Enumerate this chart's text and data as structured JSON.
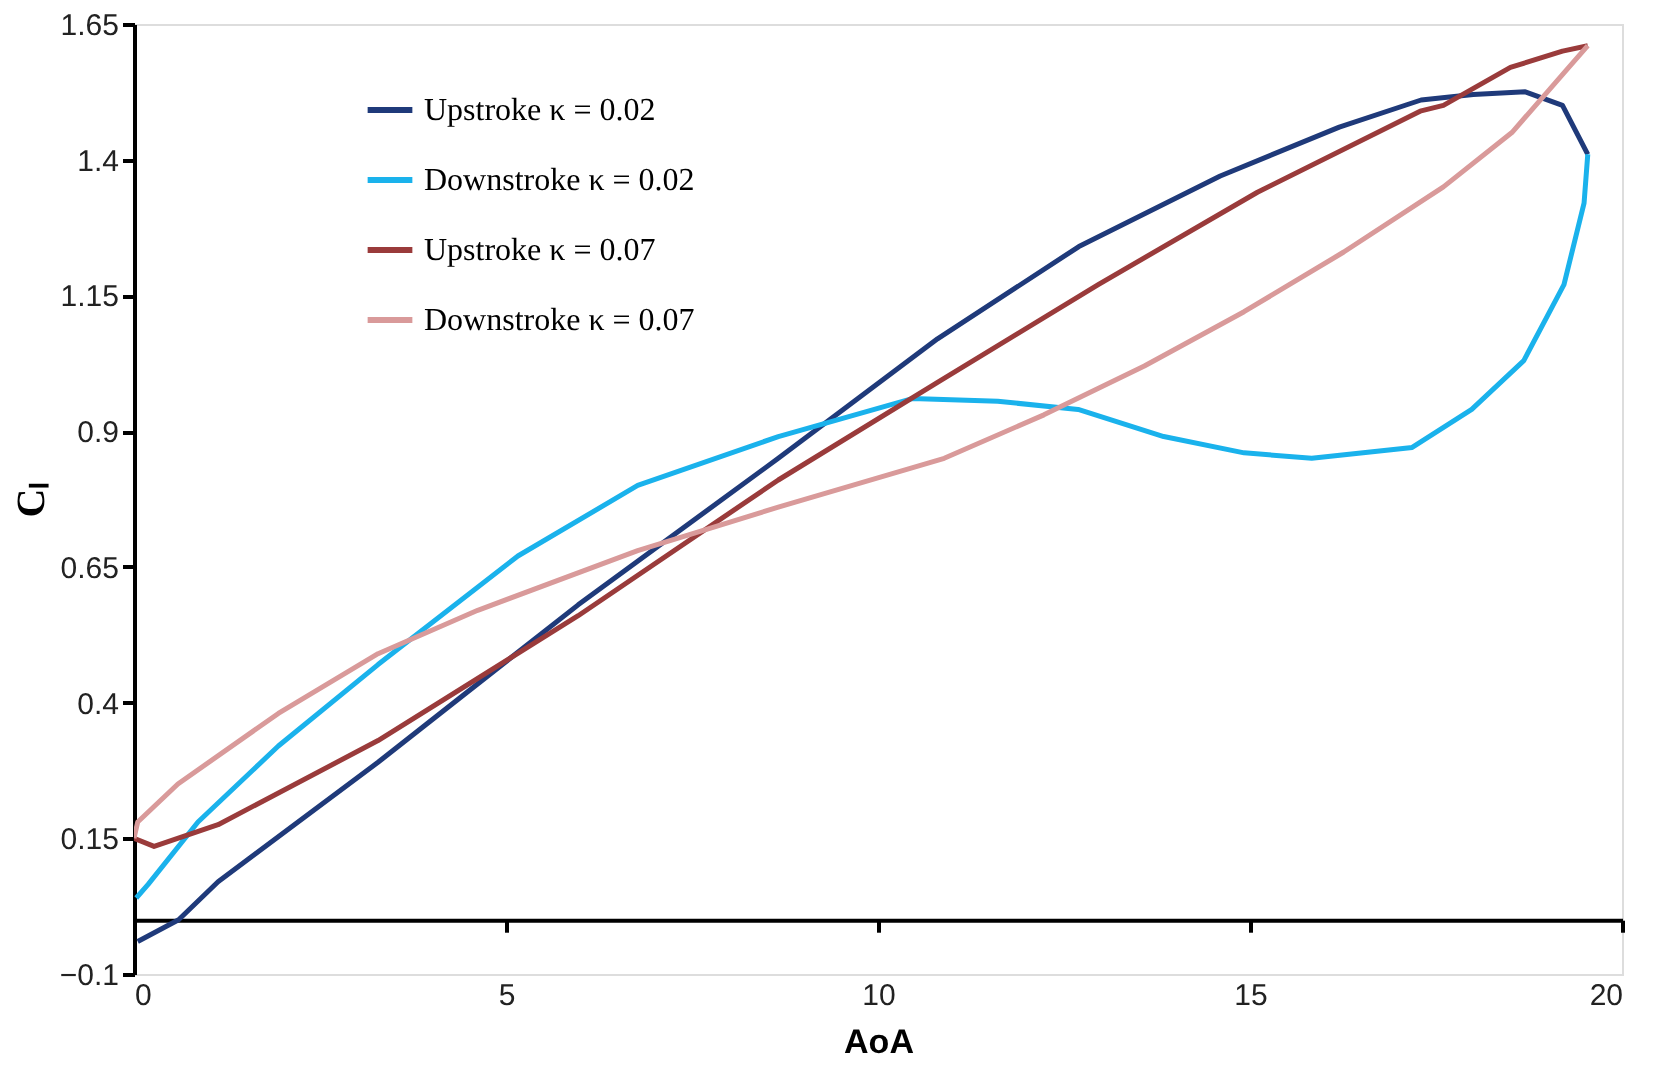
{
  "chart_data": {
    "type": "line",
    "xlabel": "AoA",
    "ylabel": "Cₗ",
    "xlim": [
      0,
      20
    ],
    "ylim": [
      -0.1,
      1.65
    ],
    "xticks": [
      0,
      5,
      10,
      15,
      20
    ],
    "yticks": [
      -0.1,
      0.15,
      0.4,
      0.65,
      0.9,
      1.15,
      1.4,
      1.65
    ],
    "grid": false,
    "legend": "top left",
    "marker": "none",
    "line_style": "solid",
    "series": [
      {
        "name": "Upstroke κ = 0.02",
        "color": "#1f3a7a",
        "x": [
          0.05,
          0.6,
          1.13,
          3.28,
          5.97,
          8.66,
          10.8,
          12.7,
          14.6,
          16.2,
          17.3,
          18.0,
          18.7,
          19.2,
          19.54
        ],
        "values": [
          -0.04,
          0.0,
          0.07,
          0.29,
          0.58,
          0.85,
          1.07,
          1.24,
          1.37,
          1.46,
          1.51,
          1.52,
          1.525,
          1.5,
          1.41
        ]
      },
      {
        "name": "Downstroke κ = 0.02",
        "color": "#1ab2ec",
        "x": [
          19.54,
          19.49,
          19.22,
          18.68,
          17.98,
          17.18,
          15.83,
          14.92,
          13.84,
          12.69,
          11.61,
          10.46,
          8.66,
          6.77,
          5.16,
          3.28,
          1.94,
          0.86,
          0.19,
          0.03
        ],
        "values": [
          1.41,
          1.32,
          1.17,
          1.03,
          0.94,
          0.87,
          0.85,
          0.86,
          0.89,
          0.94,
          0.955,
          0.96,
          0.89,
          0.8,
          0.67,
          0.47,
          0.32,
          0.18,
          0.065,
          0.04
        ]
      },
      {
        "name": "Upstroke κ = 0.07",
        "color": "#9a3b3b",
        "x": [
          0,
          0.27,
          1.13,
          3.28,
          5.97,
          8.66,
          10.8,
          12.96,
          15.1,
          17.3,
          17.6,
          18.5,
          19.2,
          19.54
        ],
        "values": [
          0.15,
          0.135,
          0.175,
          0.33,
          0.56,
          0.81,
          0.99,
          1.17,
          1.34,
          1.49,
          1.5,
          1.57,
          1.6,
          1.61
        ]
      },
      {
        "name": "Downstroke κ = 0.07",
        "color": "#d99a9a",
        "x": [
          19.54,
          19.22,
          18.52,
          17.6,
          16.26,
          14.92,
          13.58,
          12.23,
          10.89,
          8.66,
          6.77,
          4.62,
          3.28,
          1.94,
          0.59,
          0.05,
          0
        ],
        "values": [
          1.61,
          1.56,
          1.45,
          1.35,
          1.23,
          1.12,
          1.02,
          0.93,
          0.85,
          0.76,
          0.68,
          0.57,
          0.49,
          0.38,
          0.25,
          0.18,
          0.15
        ]
      }
    ]
  }
}
